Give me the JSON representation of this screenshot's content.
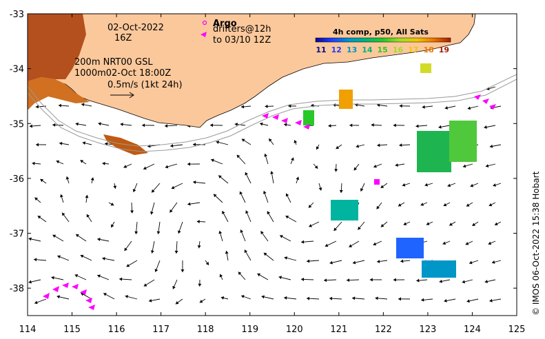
{
  "map": {
    "lon_range": [
      114,
      125
    ],
    "lat_range": [
      -38.5,
      -33
    ],
    "x_ticks": [
      "114",
      "115",
      "116",
      "117",
      "118",
      "119",
      "120",
      "121",
      "122",
      "123",
      "124",
      "125"
    ],
    "y_ticks": [
      "-33",
      "-34",
      "-35",
      "-36",
      "-37",
      "-38"
    ],
    "colors": {
      "land": "#fbc89b",
      "ocean": "#ffffff",
      "argo": "#ff00ff",
      "drifter": "#ff00ff",
      "isobath": "#999999"
    }
  },
  "info": {
    "date": "02-Oct-2022",
    "hour": "16Z",
    "depth_line_1": "200m  NRT00 GSL",
    "depth_line_2": "1000m02-Oct 18:00Z",
    "scale_text": "0.5m/s (1kt 24h)"
  },
  "legend": {
    "argo_marker": "o",
    "argo_label": "Argo",
    "drifter_marker": "<",
    "drifter_line_1": "drifters@12h",
    "drifter_line_2": "to 03/10 12Z"
  },
  "colorbar": {
    "title": "4h comp, p50, All Sats",
    "ticks": [
      "11",
      "12",
      "13",
      "14",
      "15",
      "16",
      "17",
      "18",
      "19"
    ],
    "tick_colors": [
      "#0a0a8c",
      "#1f3cff",
      "#0096c8",
      "#00b478",
      "#28c828",
      "#a0dc28",
      "#f0c800",
      "#f07800",
      "#a01e00"
    ]
  },
  "credit": "© IMOS 06-Oct-2022 15:38 Hobart"
}
